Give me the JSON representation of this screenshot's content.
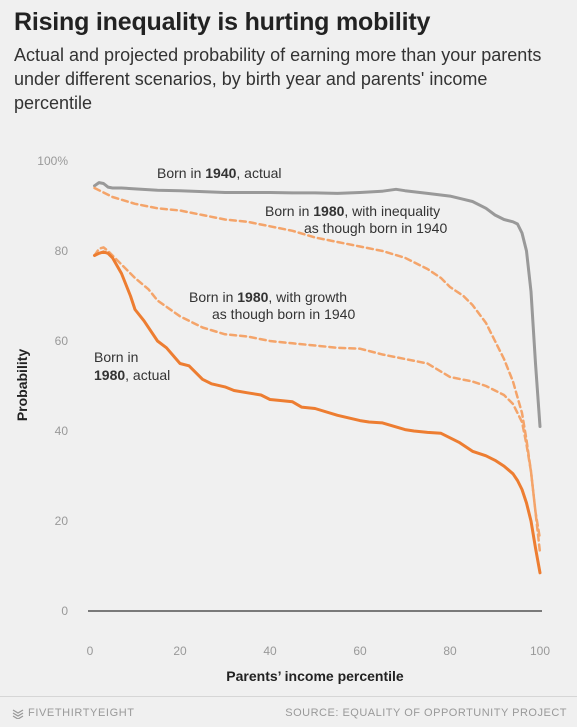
{
  "title": "Rising inequality is hurting mobility",
  "subtitle": "Actual and projected probability of earning more than your parents under different scenarios, by birth year and parents' income percentile",
  "footer": {
    "brand": "FIVETHIRTYEIGHT",
    "source": "SOURCE: EQUALITY OF OPPORTUNITY PROJECT"
  },
  "chart_data": {
    "type": "line",
    "xlabel": "Parents’ income percentile",
    "ylabel": "Probability",
    "xlim": [
      0,
      100
    ],
    "ylim": [
      0,
      100
    ],
    "x_ticks": [
      {
        "value": 0,
        "label": "0"
      },
      {
        "value": 20,
        "label": "20"
      },
      {
        "value": 40,
        "label": "40"
      },
      {
        "value": 60,
        "label": "60"
      },
      {
        "value": 80,
        "label": "80"
      },
      {
        "value": 100,
        "label": "100"
      }
    ],
    "y_ticks": [
      {
        "value": 0,
        "label": "0"
      },
      {
        "value": 20,
        "label": "20"
      },
      {
        "value": 40,
        "label": "40"
      },
      {
        "value": 60,
        "label": "60"
      },
      {
        "value": 80,
        "label": "80"
      },
      {
        "value": 100,
        "label": "100%"
      }
    ],
    "grid": false,
    "colors": {
      "gray": "#999999",
      "orange": "#ed7d31",
      "orange_light": "#f4a46a",
      "zero_line": "#333333"
    },
    "series": [
      {
        "key": "born1940actual",
        "label_parts": [
          {
            "text": "Born in ",
            "bold": false
          },
          {
            "text": "1940",
            "bold": true
          },
          {
            "text": ", actual",
            "bold": false
          }
        ],
        "x": [
          1,
          2,
          3,
          4,
          5,
          7,
          10,
          15,
          20,
          25,
          30,
          35,
          40,
          45,
          50,
          55,
          60,
          65,
          68,
          70,
          75,
          80,
          83,
          85,
          88,
          90,
          92,
          94,
          95,
          96,
          97,
          98,
          99,
          100
        ],
        "values": [
          94.5,
          95.2,
          95,
          94.2,
          94,
          94,
          93.8,
          93.5,
          93.4,
          93.2,
          93,
          93,
          93,
          92.9,
          92.9,
          92.8,
          93,
          93.3,
          93.7,
          93.4,
          92.8,
          92.2,
          91.5,
          91,
          89.5,
          88,
          87,
          86.5,
          86,
          84,
          80,
          71,
          55,
          41
        ]
      },
      {
        "key": "born1980inequality",
        "label_parts": [
          {
            "text": "Born in ",
            "bold": false
          },
          {
            "text": "1980",
            "bold": true
          },
          {
            "text": ", with inequality",
            "bold": false
          },
          {
            "text": "as though born in 1940",
            "bold": false,
            "newline": true
          }
        ],
        "x": [
          1,
          3,
          5,
          10,
          15,
          20,
          25,
          30,
          35,
          40,
          45,
          50,
          55,
          60,
          65,
          70,
          75,
          78,
          80,
          83,
          85,
          88,
          90,
          92,
          94,
          96,
          97,
          98,
          99,
          100
        ],
        "values": [
          94,
          93,
          92,
          90.5,
          89.5,
          89,
          88,
          87,
          86.5,
          85.5,
          84.5,
          83,
          82,
          81,
          80,
          78.5,
          76,
          74,
          72,
          70,
          68,
          64,
          60,
          56,
          51,
          44,
          38,
          31,
          22,
          16
        ]
      },
      {
        "key": "born1980growth",
        "label_parts": [
          {
            "text": "Born in ",
            "bold": false
          },
          {
            "text": "1980",
            "bold": true
          },
          {
            "text": ", with growth",
            "bold": false
          },
          {
            "text": "as though born in 1940",
            "bold": false,
            "newline": true
          }
        ],
        "x": [
          1,
          2,
          3,
          4,
          5,
          7,
          10,
          13,
          15,
          20,
          25,
          30,
          35,
          40,
          45,
          50,
          55,
          60,
          65,
          70,
          75,
          80,
          85,
          88,
          90,
          92,
          94,
          96,
          97,
          98,
          99,
          100
        ],
        "values": [
          79,
          80.5,
          80.8,
          80,
          79,
          77,
          74,
          71.5,
          69,
          65.5,
          63,
          61.5,
          61,
          60,
          59.5,
          59,
          58.5,
          58.3,
          57,
          56,
          55,
          52,
          51,
          50,
          49,
          48,
          46,
          42,
          37,
          31,
          22,
          13
        ]
      },
      {
        "key": "born1980actual",
        "label_parts": [
          {
            "text": "Born in",
            "bold": false
          },
          {
            "text": "1980",
            "bold": true,
            "newline": true
          },
          {
            "text": ", actual",
            "bold": false
          }
        ],
        "x": [
          1,
          2,
          3,
          4,
          5,
          7,
          9,
          10,
          12,
          15,
          17,
          20,
          22,
          25,
          27,
          30,
          32,
          35,
          38,
          40,
          42,
          45,
          47,
          50,
          55,
          60,
          62,
          65,
          70,
          72,
          75,
          78,
          80,
          82,
          85,
          88,
          90,
          92,
          94,
          95,
          96,
          97,
          98,
          99,
          100
        ],
        "values": [
          79,
          79.5,
          79.8,
          79.5,
          78.5,
          75,
          70,
          67,
          64.5,
          60,
          58.5,
          55,
          54.5,
          51.5,
          50.5,
          49.8,
          49,
          48.5,
          48,
          47,
          46.8,
          46.5,
          45.3,
          45,
          43.5,
          42.3,
          42,
          41.8,
          40.3,
          40,
          39.7,
          39.5,
          38.5,
          37.5,
          35.5,
          34.5,
          33.5,
          32.2,
          30.5,
          29,
          27,
          24,
          20,
          14,
          8.5
        ]
      }
    ]
  }
}
